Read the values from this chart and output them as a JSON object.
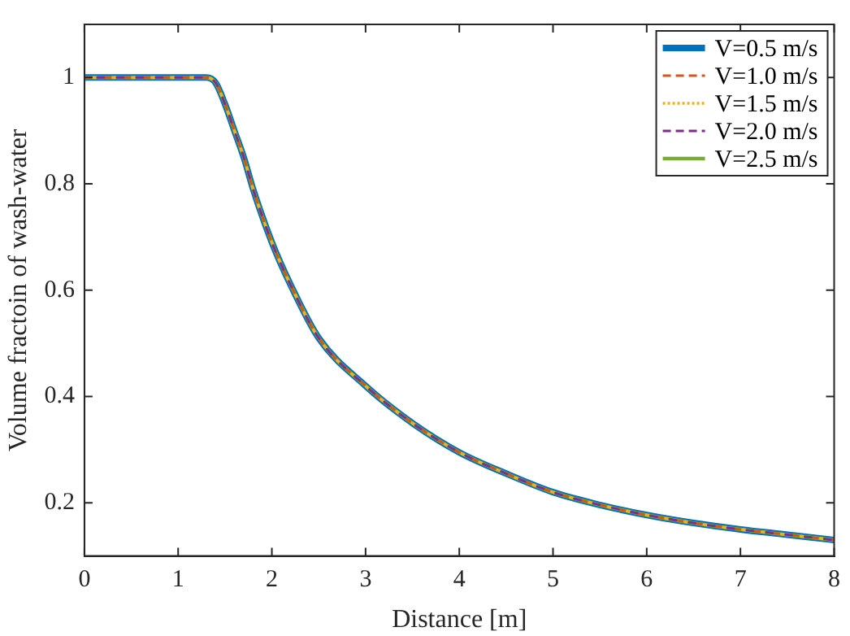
{
  "chart_data": {
    "type": "line",
    "xlabel": "Distance [m]",
    "ylabel": "Volume fractoin of wash-water",
    "x": [
      0,
      0.5,
      1,
      1.3,
      1.4,
      1.5,
      1.6,
      1.7,
      1.8,
      2,
      2.2,
      2.5,
      3,
      3.5,
      4,
      4.5,
      5,
      5.5,
      6,
      6.5,
      7,
      7.5,
      8
    ],
    "series": [
      {
        "name": "V=0.5 m/s",
        "color": "#0072bd",
        "line_style": "solid",
        "values": [
          1,
          1,
          1,
          1,
          0.99,
          0.95,
          0.9,
          0.85,
          0.79,
          0.69,
          0.61,
          0.51,
          0.42,
          0.35,
          0.295,
          0.255,
          0.22,
          0.196,
          0.177,
          0.162,
          0.15,
          0.14,
          0.13
        ]
      },
      {
        "name": "V=1.0 m/s",
        "color": "#d95319",
        "line_style": "dashed",
        "values": [
          1,
          1,
          1,
          1,
          0.99,
          0.95,
          0.9,
          0.85,
          0.79,
          0.69,
          0.61,
          0.51,
          0.42,
          0.35,
          0.295,
          0.255,
          0.22,
          0.196,
          0.177,
          0.162,
          0.15,
          0.14,
          0.13
        ]
      },
      {
        "name": "V=1.5 m/s",
        "color": "#edb120",
        "line_style": "dotted",
        "values": [
          1,
          1,
          1,
          1,
          0.99,
          0.95,
          0.9,
          0.85,
          0.79,
          0.69,
          0.61,
          0.51,
          0.42,
          0.35,
          0.295,
          0.255,
          0.22,
          0.196,
          0.177,
          0.162,
          0.15,
          0.14,
          0.13
        ]
      },
      {
        "name": "V=2.0 m/s",
        "color": "#7e2f8e",
        "line_style": "dashed",
        "values": [
          1,
          1,
          1,
          1,
          0.99,
          0.95,
          0.9,
          0.85,
          0.79,
          0.69,
          0.61,
          0.51,
          0.42,
          0.35,
          0.295,
          0.255,
          0.22,
          0.196,
          0.177,
          0.162,
          0.15,
          0.14,
          0.13
        ]
      },
      {
        "name": "V=2.5 m/s",
        "color": "#77ac30",
        "line_style": "solid",
        "values": [
          1,
          1,
          1,
          1,
          0.99,
          0.95,
          0.9,
          0.85,
          0.79,
          0.69,
          0.61,
          0.51,
          0.42,
          0.35,
          0.295,
          0.255,
          0.22,
          0.196,
          0.177,
          0.162,
          0.15,
          0.14,
          0.13
        ]
      }
    ],
    "xlim": [
      0,
      8
    ],
    "xticks": [
      0,
      1,
      2,
      3,
      4,
      5,
      6,
      7,
      8
    ],
    "ylim": [
      0.1,
      1.1
    ],
    "yticks": [
      0.2,
      0.4,
      0.6,
      0.8,
      1
    ],
    "grid": false,
    "legend": "top right",
    "marker": "none"
  }
}
